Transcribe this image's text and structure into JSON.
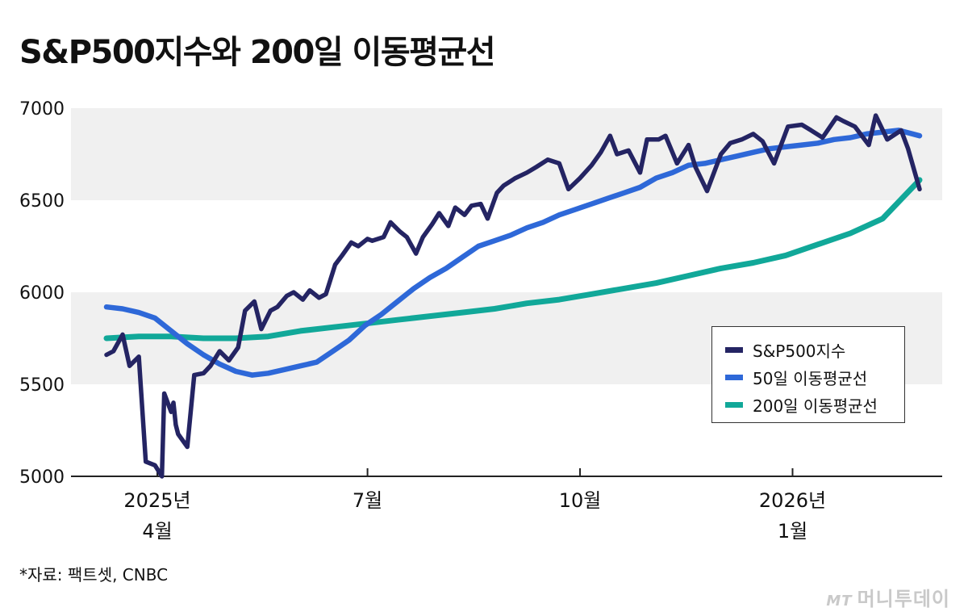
{
  "title": "S&P500지수와 200일 이동평균선",
  "source": "*자료: 팩트셋, CNBC",
  "logo": {
    "mark": "MT",
    "text": "머니투데이"
  },
  "chart_data": {
    "type": "line",
    "title": "S&P500지수와 200일 이동평균선",
    "xlabel": "",
    "ylabel": "",
    "ylim": [
      5000,
      7000
    ],
    "y_ticks": [
      "7000",
      "6500",
      "6000",
      "5500",
      "5000"
    ],
    "y_tick_values": [
      7000,
      6500,
      6000,
      5500,
      5000
    ],
    "x_ticks": [
      {
        "line1": "2025년",
        "line2": "4월",
        "date": "2025-04-01"
      },
      {
        "line1": "7월",
        "line2": "",
        "date": "2025-07-01"
      },
      {
        "line1": "10월",
        "line2": "",
        "date": "2025-10-01"
      },
      {
        "line1": "2026년",
        "line2": "1월",
        "date": "2026-01-01"
      }
    ],
    "xlim": [
      "2025-03-10",
      "2026-02-25"
    ],
    "grid_bands": true,
    "legend": "right",
    "series": [
      {
        "name": "S&P500지수",
        "color": "#242463",
        "x": [
          "2025-03-10",
          "2025-03-13",
          "2025-03-17",
          "2025-03-20",
          "2025-03-24",
          "2025-03-27",
          "2025-03-31",
          "2025-04-03",
          "2025-04-04",
          "2025-04-07",
          "2025-04-08",
          "2025-04-09",
          "2025-04-10",
          "2025-04-14",
          "2025-04-17",
          "2025-04-21",
          "2025-04-24",
          "2025-04-28",
          "2025-05-02",
          "2025-05-06",
          "2025-05-09",
          "2025-05-13",
          "2025-05-16",
          "2025-05-20",
          "2025-05-23",
          "2025-05-27",
          "2025-05-30",
          "2025-06-03",
          "2025-06-06",
          "2025-06-10",
          "2025-06-13",
          "2025-06-17",
          "2025-06-20",
          "2025-06-24",
          "2025-06-27",
          "2025-07-01",
          "2025-07-03",
          "2025-07-08",
          "2025-07-11",
          "2025-07-15",
          "2025-07-18",
          "2025-07-22",
          "2025-07-25",
          "2025-07-29",
          "2025-08-01",
          "2025-08-05",
          "2025-08-08",
          "2025-08-12",
          "2025-08-15",
          "2025-08-19",
          "2025-08-22",
          "2025-08-26",
          "2025-08-29",
          "2025-09-03",
          "2025-09-08",
          "2025-09-12",
          "2025-09-17",
          "2025-09-22",
          "2025-09-26",
          "2025-10-01",
          "2025-10-06",
          "2025-10-10",
          "2025-10-14",
          "2025-10-17",
          "2025-10-22",
          "2025-10-27",
          "2025-10-30",
          "2025-11-04",
          "2025-11-07",
          "2025-11-12",
          "2025-11-17",
          "2025-11-20",
          "2025-11-25",
          "2025-12-01",
          "2025-12-05",
          "2025-12-10",
          "2025-12-15",
          "2025-12-19",
          "2025-12-24",
          "2025-12-30",
          "2026-01-05",
          "2026-01-09",
          "2026-01-14",
          "2026-01-20",
          "2026-01-23",
          "2026-01-28",
          "2026-02-03",
          "2026-02-06",
          "2026-02-11",
          "2026-02-17",
          "2026-02-20",
          "2026-02-25"
        ],
        "values": [
          5660,
          5680,
          5770,
          5600,
          5650,
          5080,
          5060,
          5000,
          5450,
          5350,
          5400,
          5280,
          5230,
          5160,
          5550,
          5560,
          5600,
          5680,
          5630,
          5700,
          5900,
          5950,
          5800,
          5900,
          5920,
          5980,
          6000,
          5960,
          6010,
          5970,
          5990,
          6150,
          6200,
          6270,
          6250,
          6290,
          6280,
          6300,
          6380,
          6330,
          6300,
          6210,
          6300,
          6370,
          6430,
          6360,
          6460,
          6420,
          6470,
          6480,
          6400,
          6540,
          6580,
          6620,
          6650,
          6680,
          6720,
          6700,
          6560,
          6620,
          6690,
          6760,
          6850,
          6750,
          6770,
          6650,
          6830,
          6830,
          6850,
          6700,
          6800,
          6680,
          6550,
          6750,
          6810,
          6830,
          6860,
          6820,
          6700,
          6900,
          6910,
          6880,
          6840,
          6950,
          6930,
          6900,
          6800,
          6960,
          6830,
          6880,
          6780,
          6560
        ]
      },
      {
        "name": "50일 이동평균선",
        "color": "#2e68d8",
        "x": [
          "2025-03-10",
          "2025-03-17",
          "2025-03-24",
          "2025-03-31",
          "2025-04-07",
          "2025-04-14",
          "2025-04-21",
          "2025-04-28",
          "2025-05-05",
          "2025-05-12",
          "2025-05-19",
          "2025-05-26",
          "2025-06-02",
          "2025-06-09",
          "2025-06-16",
          "2025-06-23",
          "2025-06-30",
          "2025-07-07",
          "2025-07-14",
          "2025-07-21",
          "2025-07-28",
          "2025-08-04",
          "2025-08-11",
          "2025-08-18",
          "2025-08-25",
          "2025-09-01",
          "2025-09-08",
          "2025-09-15",
          "2025-09-22",
          "2025-09-29",
          "2025-10-06",
          "2025-10-13",
          "2025-10-20",
          "2025-10-27",
          "2025-11-03",
          "2025-11-10",
          "2025-11-17",
          "2025-11-24",
          "2025-12-01",
          "2025-12-08",
          "2025-12-15",
          "2025-12-22",
          "2025-12-29",
          "2026-01-05",
          "2026-01-12",
          "2026-01-19",
          "2026-01-26",
          "2026-02-02",
          "2026-02-09",
          "2026-02-16",
          "2026-02-25"
        ],
        "values": [
          5920,
          5910,
          5890,
          5860,
          5790,
          5720,
          5660,
          5610,
          5570,
          5550,
          5560,
          5580,
          5600,
          5620,
          5680,
          5740,
          5820,
          5880,
          5950,
          6020,
          6080,
          6130,
          6190,
          6250,
          6280,
          6310,
          6350,
          6380,
          6420,
          6450,
          6480,
          6510,
          6540,
          6570,
          6620,
          6650,
          6690,
          6700,
          6720,
          6740,
          6760,
          6780,
          6790,
          6800,
          6810,
          6830,
          6840,
          6860,
          6870,
          6880,
          6850
        ]
      },
      {
        "name": "200일 이동평균선",
        "color": "#11a899",
        "x": [
          "2025-03-10",
          "2025-03-24",
          "2025-04-07",
          "2025-04-21",
          "2025-05-05",
          "2025-05-19",
          "2025-06-02",
          "2025-06-16",
          "2025-06-30",
          "2025-07-14",
          "2025-07-28",
          "2025-08-11",
          "2025-08-25",
          "2025-09-08",
          "2025-09-22",
          "2025-10-06",
          "2025-10-20",
          "2025-11-03",
          "2025-11-17",
          "2025-12-01",
          "2025-12-15",
          "2025-12-29",
          "2026-01-12",
          "2026-01-26",
          "2026-02-09",
          "2026-02-25"
        ],
        "values": [
          5750,
          5760,
          5760,
          5750,
          5750,
          5760,
          5790,
          5810,
          5830,
          5850,
          5870,
          5890,
          5910,
          5940,
          5960,
          5990,
          6020,
          6050,
          6090,
          6130,
          6160,
          6200,
          6260,
          6320,
          6400,
          6610
        ]
      }
    ]
  }
}
